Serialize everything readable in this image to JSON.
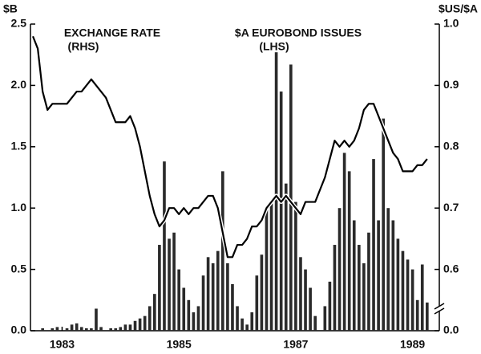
{
  "chart_data": {
    "type": "bar-line",
    "y_label": "$B",
    "y2_label": "$US/$A",
    "categories": [
      null,
      null,
      null,
      null,
      null,
      null,
      "1983",
      null,
      null,
      null,
      null,
      null,
      null,
      null,
      null,
      null,
      null,
      null,
      null,
      null,
      null,
      null,
      null,
      null,
      null,
      null,
      null,
      null,
      null,
      null,
      "1985",
      null,
      null,
      null,
      null,
      null,
      null,
      null,
      null,
      null,
      null,
      null,
      null,
      null,
      null,
      null,
      null,
      null,
      null,
      null,
      null,
      null,
      null,
      null,
      "1987",
      null,
      null,
      null,
      null,
      null,
      null,
      null,
      null,
      null,
      null,
      null,
      null,
      null,
      null,
      null,
      null,
      null,
      null,
      null,
      null,
      null,
      null,
      null,
      "1989",
      null,
      null,
      null,
      null,
      null
    ],
    "series": [
      {
        "name": "$A EUROBOND ISSUES",
        "note": "(LHS)",
        "type": "bar",
        "color": "#2a2a2a",
        "values": [
          0,
          0,
          0.02,
          0,
          0.02,
          0.03,
          0,
          0.02,
          0.05,
          0.06,
          0.03,
          0.02,
          0.02,
          0.18,
          0.03,
          0,
          0.02,
          0.02,
          0.03,
          0.05,
          0.05,
          0.08,
          0.1,
          0.12,
          0.2,
          0.3,
          0.7,
          1.38,
          0.75,
          0.8,
          0.5,
          0.35,
          0.25,
          0.15,
          0.2,
          0.45,
          0.6,
          0.55,
          0.65,
          1.3,
          0.55,
          0.38,
          0.2,
          0.1,
          0.05,
          0.15,
          0.45,
          0.62,
          1.0,
          1.05,
          2.27,
          1.95,
          1.2,
          2.17,
          1.05,
          0.6,
          0.5,
          0.35,
          0.12,
          0,
          0.2,
          0.4,
          0.7,
          1.0,
          1.45,
          1.3,
          0.9,
          0.7,
          0.55,
          0.8,
          1.4,
          0.9,
          1.73,
          1.0,
          0.9,
          0.75,
          0.65,
          0.58,
          0.5,
          0.25,
          0.54,
          0.23,
          null,
          null
        ]
      },
      {
        "name": "EXCHANGE RATE",
        "note": "(RHS)",
        "type": "line",
        "axis": "y2",
        "color": "#000000",
        "values": [
          0.98,
          0.96,
          0.89,
          0.86,
          0.87,
          0.87,
          0.87,
          0.87,
          0.88,
          0.89,
          0.89,
          0.9,
          0.91,
          0.9,
          0.89,
          0.88,
          0.86,
          0.84,
          0.84,
          0.84,
          0.85,
          0.83,
          0.8,
          0.76,
          0.72,
          0.69,
          0.67,
          0.68,
          0.7,
          0.7,
          0.69,
          0.7,
          0.69,
          0.7,
          0.7,
          0.71,
          0.72,
          0.72,
          0.7,
          0.66,
          0.62,
          0.62,
          0.64,
          0.64,
          0.65,
          0.67,
          0.67,
          0.68,
          0.7,
          0.71,
          0.72,
          0.71,
          0.72,
          0.71,
          0.7,
          0.69,
          0.71,
          0.71,
          0.71,
          0.73,
          0.75,
          0.78,
          0.81,
          0.8,
          0.81,
          0.8,
          0.81,
          0.83,
          0.86,
          0.87,
          0.87,
          0.85,
          0.83,
          0.81,
          0.79,
          0.78,
          0.76,
          0.76,
          0.76,
          0.77,
          0.77,
          0.78,
          null,
          null
        ]
      }
    ],
    "ylim": [
      0,
      2.5
    ],
    "yticks": [
      {
        "value": 0,
        "label": "0.0"
      },
      0.5,
      {
        "value": 1,
        "label": "1.0"
      },
      1.5,
      {
        "value": 2,
        "label": "2.0"
      },
      2.5
    ],
    "y2lim": [
      0.5,
      1.0
    ],
    "y2ticks": [
      {
        "value": 0,
        "label": "0.0"
      },
      0.6,
      0.7,
      0.8,
      0.9,
      {
        "value": 1,
        "label": "1.0"
      }
    ],
    "y2_axis_break": true
  }
}
